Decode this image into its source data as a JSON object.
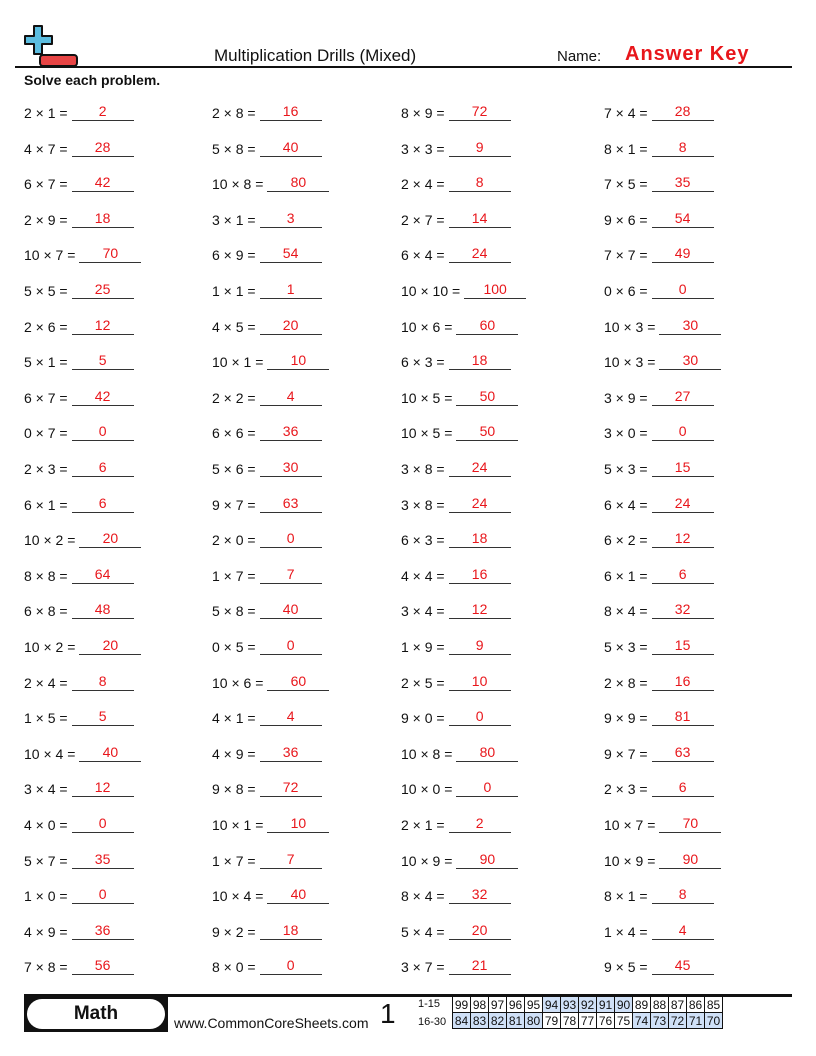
{
  "header": {
    "title": "Multiplication Drills (Mixed)",
    "name_label": "Name:",
    "answer_key": "Answer Key",
    "logo_colors": {
      "plus": "#5bbde0",
      "minus": "#e84545"
    }
  },
  "instructions": "Solve each problem.",
  "columns": [
    [
      [
        "2 × 1 =",
        "2"
      ],
      [
        "4 × 7 =",
        "28"
      ],
      [
        "6 × 7 =",
        "42"
      ],
      [
        "2 × 9 =",
        "18"
      ],
      [
        "10 × 7 =",
        "70"
      ],
      [
        "5 × 5 =",
        "25"
      ],
      [
        "2 × 6 =",
        "12"
      ],
      [
        "5 × 1 =",
        "5"
      ],
      [
        "6 × 7 =",
        "42"
      ],
      [
        "0 × 7 =",
        "0"
      ],
      [
        "2 × 3 =",
        "6"
      ],
      [
        "6 × 1 =",
        "6"
      ],
      [
        "10 × 2 =",
        "20"
      ],
      [
        "8 × 8 =",
        "64"
      ],
      [
        "6 × 8 =",
        "48"
      ],
      [
        "10 × 2 =",
        "20"
      ],
      [
        "2 × 4 =",
        "8"
      ],
      [
        "1 × 5 =",
        "5"
      ],
      [
        "10 × 4 =",
        "40"
      ],
      [
        "3 × 4 =",
        "12"
      ],
      [
        "4 × 0 =",
        "0"
      ],
      [
        "5 × 7 =",
        "35"
      ],
      [
        "1 × 0 =",
        "0"
      ],
      [
        "4 × 9 =",
        "36"
      ],
      [
        "7 × 8 =",
        "56"
      ]
    ],
    [
      [
        "2 × 8 =",
        "16"
      ],
      [
        "5 × 8 =",
        "40"
      ],
      [
        "10 × 8 =",
        "80"
      ],
      [
        "3 × 1 =",
        "3"
      ],
      [
        "6 × 9 =",
        "54"
      ],
      [
        "1 × 1 =",
        "1"
      ],
      [
        "4 × 5 =",
        "20"
      ],
      [
        "10 × 1 =",
        "10"
      ],
      [
        "2 × 2 =",
        "4"
      ],
      [
        "6 × 6 =",
        "36"
      ],
      [
        "5 × 6 =",
        "30"
      ],
      [
        "9 × 7 =",
        "63"
      ],
      [
        "2 × 0 =",
        "0"
      ],
      [
        "1 × 7 =",
        "7"
      ],
      [
        "5 × 8 =",
        "40"
      ],
      [
        "0 × 5 =",
        "0"
      ],
      [
        "10 × 6 =",
        "60"
      ],
      [
        "4 × 1 =",
        "4"
      ],
      [
        "4 × 9 =",
        "36"
      ],
      [
        "9 × 8 =",
        "72"
      ],
      [
        "10 × 1 =",
        "10"
      ],
      [
        "1 × 7 =",
        "7"
      ],
      [
        "10 × 4 =",
        "40"
      ],
      [
        "9 × 2 =",
        "18"
      ],
      [
        "8 × 0 =",
        "0"
      ]
    ],
    [
      [
        "8 × 9 =",
        "72"
      ],
      [
        "3 × 3 =",
        "9"
      ],
      [
        "2 × 4 =",
        "8"
      ],
      [
        "2 × 7 =",
        "14"
      ],
      [
        "6 × 4 =",
        "24"
      ],
      [
        "10 × 10 =",
        "100"
      ],
      [
        "10 × 6 =",
        "60"
      ],
      [
        "6 × 3 =",
        "18"
      ],
      [
        "10 × 5 =",
        "50"
      ],
      [
        "10 × 5 =",
        "50"
      ],
      [
        "3 × 8 =",
        "24"
      ],
      [
        "3 × 8 =",
        "24"
      ],
      [
        "6 × 3 =",
        "18"
      ],
      [
        "4 × 4 =",
        "16"
      ],
      [
        "3 × 4 =",
        "12"
      ],
      [
        "1 × 9 =",
        "9"
      ],
      [
        "2 × 5 =",
        "10"
      ],
      [
        "9 × 0 =",
        "0"
      ],
      [
        "10 × 8 =",
        "80"
      ],
      [
        "10 × 0 =",
        "0"
      ],
      [
        "2 × 1 =",
        "2"
      ],
      [
        "10 × 9 =",
        "90"
      ],
      [
        "8 × 4 =",
        "32"
      ],
      [
        "5 × 4 =",
        "20"
      ],
      [
        "3 × 7 =",
        "21"
      ]
    ],
    [
      [
        "7 × 4 =",
        "28"
      ],
      [
        "8 × 1 =",
        "8"
      ],
      [
        "7 × 5 =",
        "35"
      ],
      [
        "9 × 6 =",
        "54"
      ],
      [
        "7 × 7 =",
        "49"
      ],
      [
        "0 × 6 =",
        "0"
      ],
      [
        "10 × 3 =",
        "30"
      ],
      [
        "10 × 3 =",
        "30"
      ],
      [
        "3 × 9 =",
        "27"
      ],
      [
        "3 × 0 =",
        "0"
      ],
      [
        "5 × 3 =",
        "15"
      ],
      [
        "6 × 4 =",
        "24"
      ],
      [
        "6 × 2 =",
        "12"
      ],
      [
        "6 × 1 =",
        "6"
      ],
      [
        "8 × 4 =",
        "32"
      ],
      [
        "5 × 3 =",
        "15"
      ],
      [
        "2 × 8 =",
        "16"
      ],
      [
        "9 × 9 =",
        "81"
      ],
      [
        "9 × 7 =",
        "63"
      ],
      [
        "2 × 3 =",
        "6"
      ],
      [
        "10 × 7 =",
        "70"
      ],
      [
        "10 × 9 =",
        "90"
      ],
      [
        "8 × 1 =",
        "8"
      ],
      [
        "1 × 4 =",
        "4"
      ],
      [
        "9 × 5 =",
        "45"
      ]
    ]
  ],
  "footer": {
    "subject": "Math",
    "website": "www.CommonCoreSheets.com",
    "page": "1",
    "score_rows": [
      {
        "label": "1-15",
        "cells": [
          "99",
          "98",
          "97",
          "96",
          "95",
          "94",
          "93",
          "92",
          "91",
          "90",
          "89",
          "88",
          "87",
          "86",
          "85"
        ],
        "highlight": [
          5,
          6,
          7,
          8,
          9
        ]
      },
      {
        "label": "16-30",
        "cells": [
          "84",
          "83",
          "82",
          "81",
          "80",
          "79",
          "78",
          "77",
          "76",
          "75",
          "74",
          "73",
          "72",
          "71",
          "70"
        ],
        "highlight": [
          0,
          1,
          2,
          3,
          4,
          10,
          11,
          12,
          13,
          14
        ]
      }
    ],
    "highlight_color": "#cfe0f7"
  }
}
